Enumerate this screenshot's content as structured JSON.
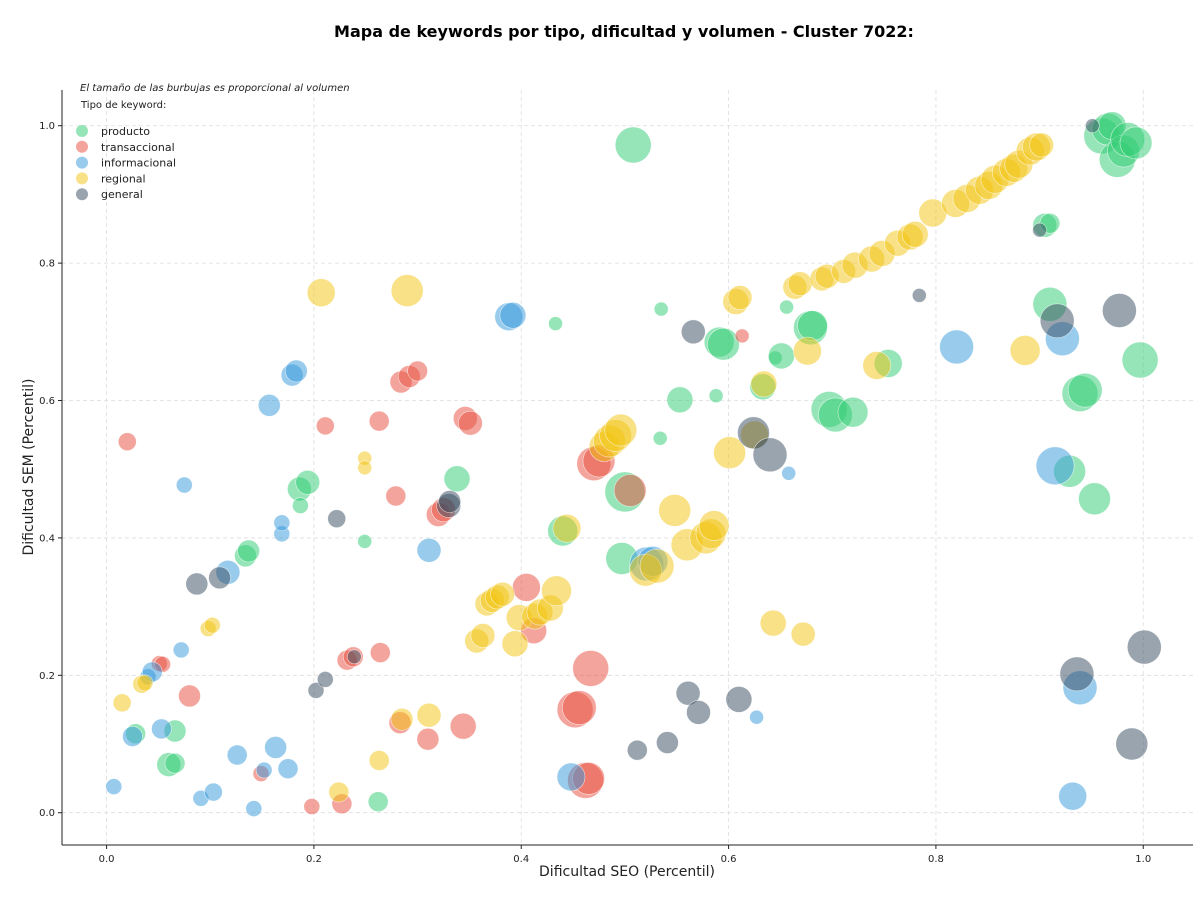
{
  "chart_data": {
    "type": "scatter",
    "title": "Mapa de keywords por tipo, dificultad y volumen - Cluster 7022:",
    "xlabel": "Dificultad SEO (Percentil)",
    "ylabel": "Dificultad SEM (Percentil)",
    "xlim": [
      -0.043,
      1.048
    ],
    "ylim": [
      -0.047,
      1.052
    ],
    "xticks": [
      "0.0",
      "0.2",
      "0.4",
      "0.6",
      "0.8",
      "1.0"
    ],
    "yticks": [
      "0.0",
      "0.2",
      "0.4",
      "0.6",
      "0.8",
      "1.0"
    ],
    "grid": true,
    "legend_position": "top-left",
    "note": "El tamaño de las burbujas es proporcional al volumen",
    "legend_title": "Tipo de keyword:",
    "series": [
      {
        "name": "producto",
        "color": "#2ecc71",
        "points": [
          [
            0.508,
            0.972,
            18
          ],
          [
            0.06,
            0.07,
            12
          ],
          [
            0.066,
            0.072,
            10
          ],
          [
            0.066,
            0.119,
            11
          ],
          [
            0.028,
            0.115,
            10
          ],
          [
            0.134,
            0.374,
            11
          ],
          [
            0.137,
            0.381,
            11
          ],
          [
            0.186,
            0.471,
            12
          ],
          [
            0.194,
            0.481,
            12
          ],
          [
            0.187,
            0.447,
            8
          ],
          [
            0.249,
            0.395,
            7
          ],
          [
            0.262,
            0.016,
            10
          ],
          [
            0.338,
            0.486,
            13
          ],
          [
            0.433,
            0.712,
            7
          ],
          [
            0.44,
            0.41,
            15
          ],
          [
            0.497,
            0.37,
            16
          ],
          [
            0.5,
            0.467,
            20
          ],
          [
            0.534,
            0.545,
            7
          ],
          [
            0.535,
            0.733,
            7
          ],
          [
            0.553,
            0.601,
            13
          ],
          [
            0.588,
            0.607,
            7
          ],
          [
            0.591,
            0.685,
            15
          ],
          [
            0.595,
            0.682,
            16
          ],
          [
            0.633,
            0.62,
            13
          ],
          [
            0.645,
            0.662,
            7
          ],
          [
            0.651,
            0.665,
            13
          ],
          [
            0.656,
            0.736,
            7
          ],
          [
            0.679,
            0.706,
            17
          ],
          [
            0.681,
            0.709,
            15
          ],
          [
            0.697,
            0.587,
            18
          ],
          [
            0.703,
            0.579,
            17
          ],
          [
            0.72,
            0.583,
            15
          ],
          [
            0.754,
            0.654,
            14
          ],
          [
            0.905,
            0.855,
            12
          ],
          [
            0.91,
            0.858,
            10
          ],
          [
            0.91,
            0.74,
            17
          ],
          [
            0.929,
            0.497,
            16
          ],
          [
            0.939,
            0.61,
            18
          ],
          [
            0.944,
            0.615,
            17
          ],
          [
            0.953,
            0.457,
            16
          ],
          [
            0.96,
            0.985,
            18
          ],
          [
            0.966,
            0.995,
            16
          ],
          [
            0.97,
            1.0,
            14
          ],
          [
            0.975,
            0.951,
            18
          ],
          [
            0.981,
            0.963,
            16
          ],
          [
            0.985,
            0.98,
            17
          ],
          [
            0.993,
            0.975,
            16
          ],
          [
            0.997,
            0.659,
            18
          ]
        ]
      },
      {
        "name": "transaccional",
        "color": "#e74c3c",
        "points": [
          [
            0.02,
            0.54,
            9
          ],
          [
            0.051,
            0.217,
            8
          ],
          [
            0.054,
            0.216,
            8
          ],
          [
            0.08,
            0.17,
            11
          ],
          [
            0.149,
            0.057,
            8
          ],
          [
            0.198,
            0.009,
            8
          ],
          [
            0.211,
            0.563,
            9
          ],
          [
            0.227,
            0.013,
            10
          ],
          [
            0.232,
            0.222,
            10
          ],
          [
            0.238,
            0.227,
            10
          ],
          [
            0.263,
            0.57,
            10
          ],
          [
            0.264,
            0.233,
            10
          ],
          [
            0.279,
            0.461,
            10
          ],
          [
            0.283,
            0.131,
            11
          ],
          [
            0.284,
            0.627,
            11
          ],
          [
            0.292,
            0.635,
            11
          ],
          [
            0.3,
            0.643,
            10
          ],
          [
            0.31,
            0.107,
            11
          ],
          [
            0.32,
            0.434,
            12
          ],
          [
            0.325,
            0.441,
            12
          ],
          [
            0.344,
            0.126,
            13
          ],
          [
            0.346,
            0.574,
            12
          ],
          [
            0.351,
            0.567,
            12
          ],
          [
            0.405,
            0.328,
            14
          ],
          [
            0.412,
            0.265,
            13
          ],
          [
            0.452,
            0.15,
            18
          ],
          [
            0.456,
            0.153,
            17
          ],
          [
            0.462,
            0.047,
            18
          ],
          [
            0.465,
            0.05,
            16
          ],
          [
            0.467,
            0.21,
            18
          ],
          [
            0.47,
            0.508,
            17
          ],
          [
            0.475,
            0.512,
            16
          ],
          [
            0.505,
            0.469,
            16
          ],
          [
            0.613,
            0.694,
            7
          ]
        ]
      },
      {
        "name": "informacional",
        "color": "#3498db",
        "points": [
          [
            0.007,
            0.038,
            8
          ],
          [
            0.025,
            0.111,
            10
          ],
          [
            0.04,
            0.198,
            8
          ],
          [
            0.044,
            0.205,
            10
          ],
          [
            0.053,
            0.122,
            10
          ],
          [
            0.072,
            0.237,
            8
          ],
          [
            0.075,
            0.477,
            8
          ],
          [
            0.091,
            0.021,
            8
          ],
          [
            0.103,
            0.03,
            9
          ],
          [
            0.117,
            0.35,
            12
          ],
          [
            0.126,
            0.084,
            10
          ],
          [
            0.142,
            0.006,
            8
          ],
          [
            0.152,
            0.062,
            8
          ],
          [
            0.157,
            0.593,
            11
          ],
          [
            0.163,
            0.095,
            11
          ],
          [
            0.169,
            0.406,
            8
          ],
          [
            0.169,
            0.422,
            8
          ],
          [
            0.175,
            0.064,
            10
          ],
          [
            0.179,
            0.637,
            11
          ],
          [
            0.183,
            0.643,
            11
          ],
          [
            0.311,
            0.382,
            12
          ],
          [
            0.388,
            0.722,
            14
          ],
          [
            0.392,
            0.724,
            13
          ],
          [
            0.448,
            0.052,
            14
          ],
          [
            0.521,
            0.362,
            17
          ],
          [
            0.527,
            0.366,
            15
          ],
          [
            0.627,
            0.139,
            7
          ],
          [
            0.658,
            0.494,
            7
          ],
          [
            0.82,
            0.678,
            17
          ],
          [
            0.915,
            0.505,
            19
          ],
          [
            0.922,
            0.69,
            17
          ],
          [
            0.932,
            0.024,
            14
          ],
          [
            0.939,
            0.182,
            17
          ]
        ]
      },
      {
        "name": "regional",
        "color": "#f1c40f",
        "points": [
          [
            0.015,
            0.16,
            9
          ],
          [
            0.034,
            0.187,
            9
          ],
          [
            0.037,
            0.189,
            8
          ],
          [
            0.098,
            0.268,
            8
          ],
          [
            0.102,
            0.273,
            8
          ],
          [
            0.207,
            0.757,
            14
          ],
          [
            0.224,
            0.03,
            10
          ],
          [
            0.249,
            0.516,
            7
          ],
          [
            0.249,
            0.502,
            7
          ],
          [
            0.263,
            0.076,
            10
          ],
          [
            0.285,
            0.136,
            11
          ],
          [
            0.29,
            0.76,
            16
          ],
          [
            0.311,
            0.142,
            12
          ],
          [
            0.357,
            0.25,
            12
          ],
          [
            0.363,
            0.258,
            12
          ],
          [
            0.367,
            0.304,
            12
          ],
          [
            0.372,
            0.309,
            12
          ],
          [
            0.377,
            0.314,
            12
          ],
          [
            0.382,
            0.318,
            12
          ],
          [
            0.394,
            0.246,
            13
          ],
          [
            0.398,
            0.284,
            13
          ],
          [
            0.413,
            0.286,
            13
          ],
          [
            0.418,
            0.292,
            13
          ],
          [
            0.428,
            0.298,
            13
          ],
          [
            0.434,
            0.323,
            15
          ],
          [
            0.444,
            0.414,
            14
          ],
          [
            0.48,
            0.533,
            15
          ],
          [
            0.485,
            0.541,
            16
          ],
          [
            0.491,
            0.549,
            16
          ],
          [
            0.496,
            0.557,
            16
          ],
          [
            0.52,
            0.353,
            16
          ],
          [
            0.531,
            0.359,
            17
          ],
          [
            0.548,
            0.44,
            16
          ],
          [
            0.56,
            0.39,
            16
          ],
          [
            0.578,
            0.4,
            16
          ],
          [
            0.583,
            0.406,
            15
          ],
          [
            0.586,
            0.418,
            15
          ],
          [
            0.601,
            0.524,
            16
          ],
          [
            0.607,
            0.744,
            13
          ],
          [
            0.611,
            0.75,
            12
          ],
          [
            0.625,
            0.55,
            14
          ],
          [
            0.634,
            0.624,
            13
          ],
          [
            0.643,
            0.276,
            13
          ],
          [
            0.664,
            0.765,
            12
          ],
          [
            0.669,
            0.77,
            12
          ],
          [
            0.672,
            0.26,
            12
          ],
          [
            0.676,
            0.672,
            14
          ],
          [
            0.69,
            0.777,
            12
          ],
          [
            0.695,
            0.781,
            12
          ],
          [
            0.711,
            0.788,
            12
          ],
          [
            0.722,
            0.797,
            13
          ],
          [
            0.738,
            0.806,
            13
          ],
          [
            0.743,
            0.651,
            14
          ],
          [
            0.748,
            0.814,
            13
          ],
          [
            0.763,
            0.829,
            13
          ],
          [
            0.775,
            0.838,
            13
          ],
          [
            0.78,
            0.842,
            13
          ],
          [
            0.797,
            0.873,
            14
          ],
          [
            0.819,
            0.887,
            14
          ],
          [
            0.83,
            0.894,
            14
          ],
          [
            0.842,
            0.906,
            14
          ],
          [
            0.851,
            0.913,
            14
          ],
          [
            0.857,
            0.922,
            14
          ],
          [
            0.868,
            0.932,
            14
          ],
          [
            0.875,
            0.938,
            14
          ],
          [
            0.88,
            0.944,
            14
          ],
          [
            0.886,
            0.673,
            15
          ],
          [
            0.891,
            0.963,
            14
          ],
          [
            0.897,
            0.969,
            14
          ],
          [
            0.902,
            0.972,
            12
          ]
        ]
      },
      {
        "name": "general",
        "color": "#34495e",
        "points": [
          [
            0.087,
            0.333,
            11
          ],
          [
            0.109,
            0.342,
            11
          ],
          [
            0.202,
            0.178,
            8
          ],
          [
            0.211,
            0.194,
            8
          ],
          [
            0.222,
            0.428,
            9
          ],
          [
            0.239,
            0.227,
            7
          ],
          [
            0.33,
            0.447,
            12
          ],
          [
            0.331,
            0.453,
            11
          ],
          [
            0.512,
            0.091,
            10
          ],
          [
            0.541,
            0.102,
            11
          ],
          [
            0.561,
            0.174,
            12
          ],
          [
            0.566,
            0.7,
            12
          ],
          [
            0.571,
            0.146,
            12
          ],
          [
            0.61,
            0.165,
            13
          ],
          [
            0.624,
            0.553,
            16
          ],
          [
            0.64,
            0.521,
            17
          ],
          [
            0.784,
            0.753,
            7
          ],
          [
            0.9,
            0.848,
            7
          ],
          [
            0.917,
            0.716,
            17
          ],
          [
            0.936,
            0.202,
            17
          ],
          [
            0.951,
            1.0,
            7
          ],
          [
            0.977,
            0.731,
            17
          ],
          [
            0.989,
            0.1,
            16
          ],
          [
            1.001,
            0.241,
            17
          ]
        ]
      }
    ]
  }
}
